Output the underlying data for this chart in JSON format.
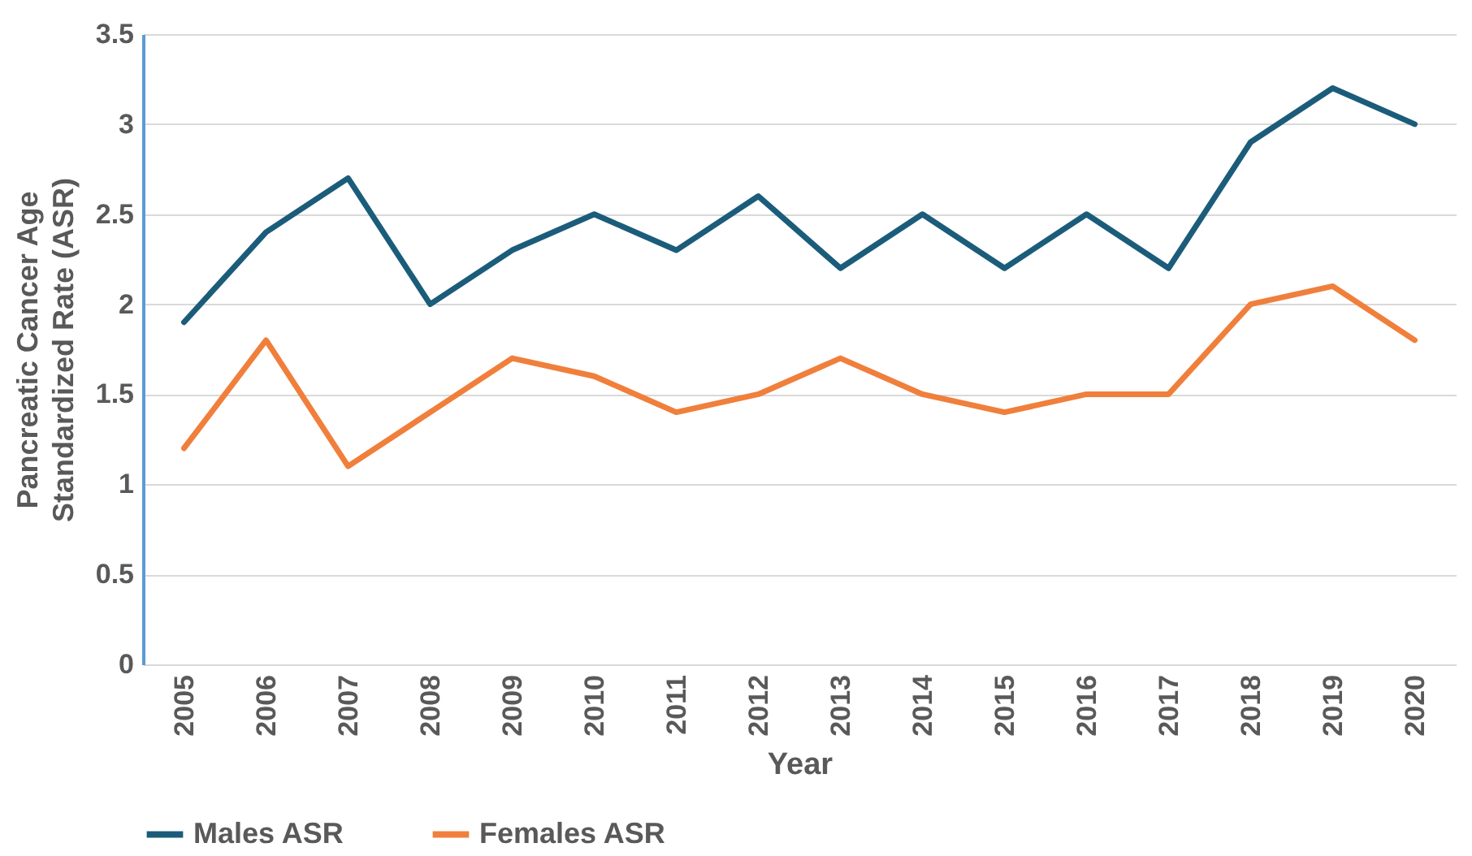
{
  "chart_data": {
    "type": "line",
    "xlabel": "Year",
    "ylabel": "Pancreatic Cancer Age Standardized Rate (ASR)",
    "categories": [
      "2005",
      "2006",
      "2007",
      "2008",
      "2009",
      "2010",
      "2011",
      "2012",
      "2013",
      "2014",
      "2015",
      "2016",
      "2017",
      "2018",
      "2019",
      "2020"
    ],
    "series": [
      {
        "name": "Males  ASR",
        "color": "#1b5c7a",
        "values": [
          1.9,
          2.4,
          2.7,
          2.0,
          2.3,
          2.5,
          2.3,
          2.6,
          2.2,
          2.5,
          2.2,
          2.5,
          2.2,
          2.9,
          3.2,
          3.0
        ]
      },
      {
        "name": "Females ASR",
        "color": "#f07f3c",
        "values": [
          1.2,
          1.8,
          1.1,
          1.4,
          1.7,
          1.6,
          1.4,
          1.5,
          1.7,
          1.5,
          1.4,
          1.5,
          1.5,
          2.0,
          2.1,
          1.8
        ]
      }
    ],
    "ylim": [
      0,
      3.5
    ],
    "yticks": [
      0,
      0.5,
      1,
      1.5,
      2,
      2.5,
      3,
      3.5
    ],
    "grid": "y",
    "legend": "bottom"
  }
}
